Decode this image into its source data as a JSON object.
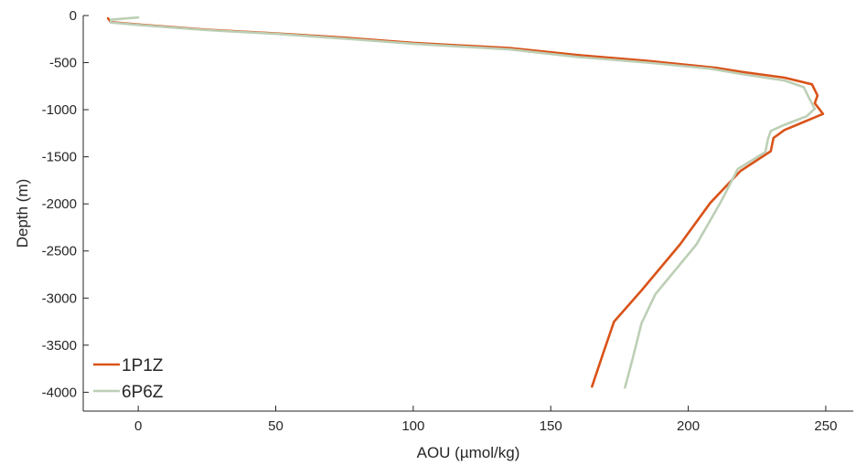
{
  "chart_data": {
    "type": "line",
    "xlabel": "AOU (µmol/kg)",
    "ylabel": "Depth (m)",
    "xlim": [
      -20,
      260
    ],
    "ylim": [
      -4200,
      0
    ],
    "xticks": [
      0,
      50,
      100,
      150,
      200,
      250
    ],
    "yticks": [
      0,
      -500,
      -1000,
      -1500,
      -2000,
      -2500,
      -3000,
      -3500,
      -4000
    ],
    "grid": false,
    "legend_position": "bottom-left",
    "series": [
      {
        "name": "1P1Z",
        "color": "#d95319",
        "points": [
          [
            -11,
            -30
          ],
          [
            -10,
            -70
          ],
          [
            0,
            -95
          ],
          [
            25,
            -150
          ],
          [
            50,
            -190
          ],
          [
            75,
            -235
          ],
          [
            100,
            -290
          ],
          [
            135,
            -345
          ],
          [
            160,
            -420
          ],
          [
            185,
            -480
          ],
          [
            210,
            -555
          ],
          [
            220,
            -600
          ],
          [
            235,
            -660
          ],
          [
            245,
            -730
          ],
          [
            247,
            -850
          ],
          [
            246,
            -930
          ],
          [
            249,
            -1045
          ],
          [
            242,
            -1130
          ],
          [
            235,
            -1215
          ],
          [
            231,
            -1300
          ],
          [
            230,
            -1440
          ],
          [
            219,
            -1650
          ],
          [
            208,
            -1990
          ],
          [
            197,
            -2430
          ],
          [
            183,
            -2920
          ],
          [
            173,
            -3250
          ],
          [
            169,
            -3590
          ],
          [
            165,
            -3940
          ]
        ]
      },
      {
        "name": "6P6Z",
        "color": "#bccfb5",
        "points": [
          [
            0,
            -20
          ],
          [
            -10,
            -45
          ],
          [
            -10,
            -75
          ],
          [
            0,
            -100
          ],
          [
            25,
            -155
          ],
          [
            50,
            -195
          ],
          [
            75,
            -245
          ],
          [
            100,
            -300
          ],
          [
            135,
            -360
          ],
          [
            160,
            -440
          ],
          [
            185,
            -500
          ],
          [
            208,
            -565
          ],
          [
            220,
            -625
          ],
          [
            235,
            -690
          ],
          [
            242,
            -760
          ],
          [
            244,
            -880
          ],
          [
            246,
            -990
          ],
          [
            243,
            -1070
          ],
          [
            235,
            -1160
          ],
          [
            230,
            -1225
          ],
          [
            229,
            -1310
          ],
          [
            228,
            -1450
          ],
          [
            218,
            -1630
          ],
          [
            212,
            -1970
          ],
          [
            203,
            -2430
          ],
          [
            188,
            -2960
          ],
          [
            183,
            -3270
          ],
          [
            180,
            -3620
          ],
          [
            177,
            -3950
          ]
        ]
      }
    ]
  }
}
